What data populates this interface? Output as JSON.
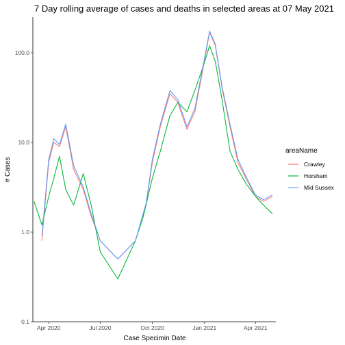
{
  "chart_data": {
    "type": "line",
    "title": "7 Day rolling average of cases and deaths in selected areas at 07 May 2021",
    "xlabel": "Case Specimin Date",
    "ylabel": "# Cases",
    "y_scale": "log10",
    "ylim": [
      0.1,
      250
    ],
    "xlim": [
      "2020-03-04",
      "2021-05-07"
    ],
    "x_ticks": [
      "2020-04-01",
      "2020-07-01",
      "2020-10-01",
      "2021-01-01",
      "2021-04-01"
    ],
    "x_tick_labels": [
      "Apr 2020",
      "Jul 2020",
      "Oct 2020",
      "Jan 2021",
      "Apr 2021"
    ],
    "y_ticks": [
      0.1,
      1.0,
      10.0,
      100.0
    ],
    "y_tick_labels": [
      "0.1",
      "1.0",
      "10.0",
      "100.0"
    ],
    "grid": false,
    "legend": {
      "title": "areaName",
      "position": "right"
    },
    "series": [
      {
        "name": "Crawley",
        "color": "#F8766D",
        "x": [
          "2020-03-20",
          "2020-04-01",
          "2020-04-10",
          "2020-04-20",
          "2020-05-01",
          "2020-05-15",
          "2020-06-01",
          "2020-06-15",
          "2020-07-01",
          "2020-08-01",
          "2020-09-01",
          "2020-09-20",
          "2020-10-01",
          "2020-10-15",
          "2020-11-01",
          "2020-11-15",
          "2020-12-01",
          "2020-12-15",
          "2020-12-31",
          "2021-01-10",
          "2021-01-20",
          "2021-02-01",
          "2021-02-15",
          "2021-03-01",
          "2021-03-15",
          "2021-04-01",
          "2021-04-15",
          "2021-05-01"
        ],
        "values": [
          0.8,
          6.0,
          10.0,
          9.0,
          15.0,
          5.0,
          3.0,
          1.5,
          0.8,
          0.5,
          0.8,
          2.0,
          6.0,
          15.0,
          35.0,
          28.0,
          14.0,
          22.0,
          75.0,
          170.0,
          120.0,
          40.0,
          15.0,
          6.0,
          4.0,
          2.5,
          2.2,
          2.5
        ]
      },
      {
        "name": "Horsham",
        "color": "#00BA38",
        "x": [
          "2020-03-06",
          "2020-03-20",
          "2020-04-01",
          "2020-04-10",
          "2020-04-20",
          "2020-05-01",
          "2020-05-15",
          "2020-06-01",
          "2020-06-15",
          "2020-07-01",
          "2020-08-01",
          "2020-09-01",
          "2020-09-15",
          "2020-10-01",
          "2020-10-15",
          "2020-11-01",
          "2020-11-15",
          "2020-12-01",
          "2020-12-15",
          "2020-12-31",
          "2021-01-10",
          "2021-01-20",
          "2021-02-01",
          "2021-02-15",
          "2021-03-01",
          "2021-03-15",
          "2021-04-01",
          "2021-04-15",
          "2021-05-01"
        ],
        "values": [
          2.2,
          1.2,
          2.5,
          4.0,
          7.0,
          3.0,
          2.0,
          4.5,
          2.0,
          0.6,
          0.3,
          0.8,
          1.5,
          4.0,
          8.0,
          20.0,
          28.0,
          22.0,
          38.0,
          75.0,
          120.0,
          80.0,
          30.0,
          8.0,
          5.0,
          3.5,
          2.5,
          2.0,
          1.6
        ]
      },
      {
        "name": "Mid Sussex",
        "color": "#619CFF",
        "x": [
          "2020-03-20",
          "2020-04-01",
          "2020-04-10",
          "2020-04-20",
          "2020-05-01",
          "2020-05-15",
          "2020-06-01",
          "2020-06-15",
          "2020-07-01",
          "2020-08-01",
          "2020-09-01",
          "2020-09-20",
          "2020-10-01",
          "2020-10-15",
          "2020-11-01",
          "2020-11-15",
          "2020-12-01",
          "2020-12-15",
          "2020-12-31",
          "2021-01-10",
          "2021-01-20",
          "2021-02-01",
          "2021-02-15",
          "2021-03-01",
          "2021-03-15",
          "2021-04-01",
          "2021-04-15",
          "2021-05-01"
        ],
        "values": [
          0.9,
          6.5,
          11.0,
          9.5,
          16.0,
          5.5,
          3.2,
          1.6,
          0.8,
          0.5,
          0.8,
          2.1,
          6.5,
          16.0,
          38.0,
          30.0,
          15.0,
          24.0,
          80.0,
          175.0,
          125.0,
          42.0,
          16.0,
          6.5,
          4.2,
          2.6,
          2.3,
          2.6
        ]
      }
    ]
  }
}
